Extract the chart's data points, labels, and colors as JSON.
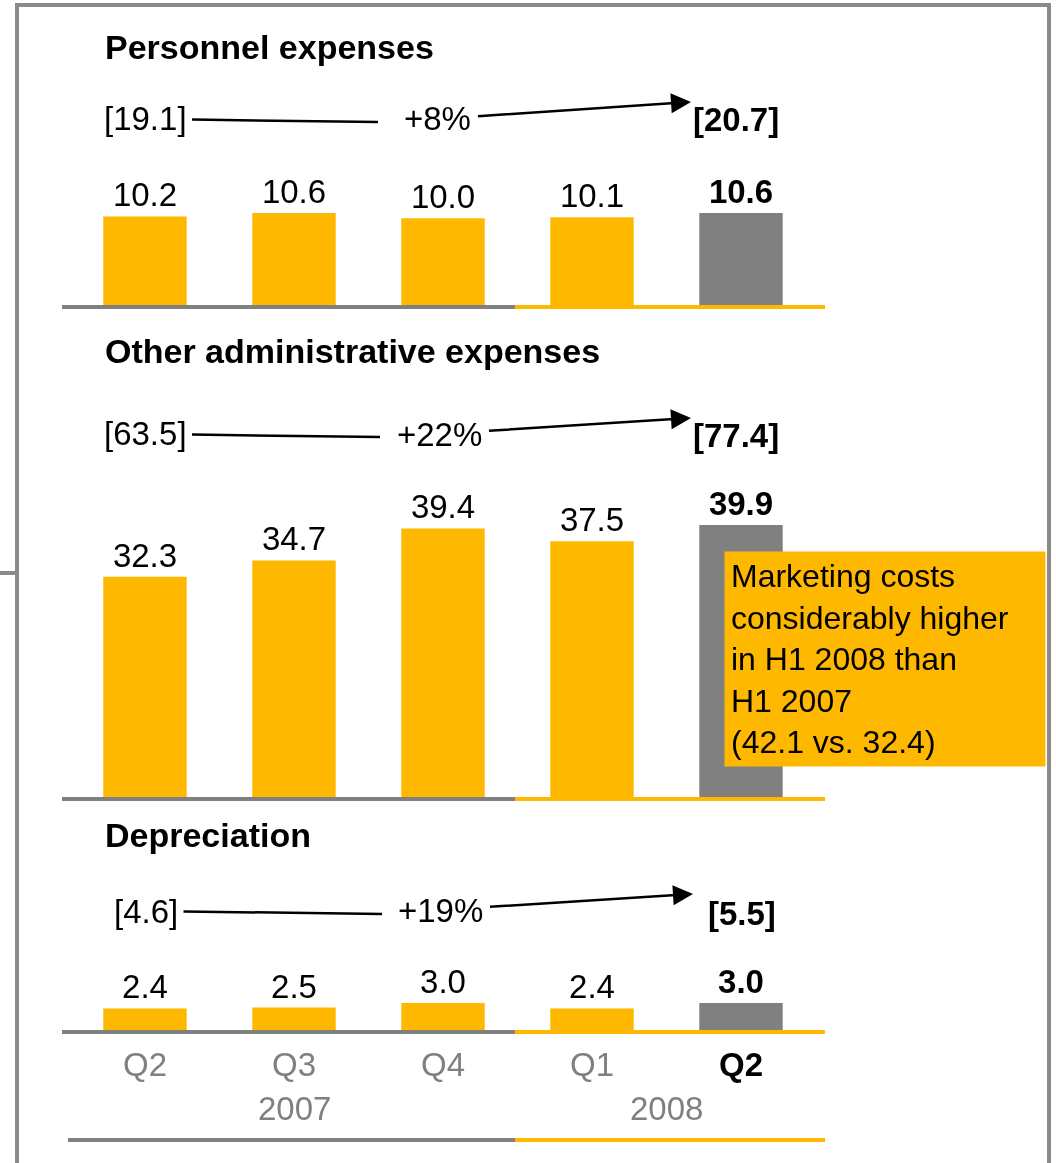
{
  "chart_data": [
    {
      "type": "bar",
      "title": "Personnel expenses",
      "values": [
        10.2,
        10.6,
        10.0,
        10.1,
        10.6
      ],
      "value_labels": [
        "10.2",
        "10.6",
        "10.0",
        "10.1",
        "10.6"
      ],
      "colors": [
        "#ffb800",
        "#ffb800",
        "#ffb800",
        "#ffb800",
        "#808080"
      ],
      "annotations": [
        "[19.1]",
        "+8%",
        "[20.7]"
      ],
      "tick_labels": false
    },
    {
      "type": "bar",
      "title": "Other administrative expenses",
      "values": [
        32.3,
        34.7,
        39.4,
        37.5,
        39.9
      ],
      "value_labels": [
        "32.3",
        "34.7",
        "39.4",
        "37.5",
        "39.9"
      ],
      "colors": [
        "#ffb800",
        "#ffb800",
        "#ffb800",
        "#ffb800",
        "#808080"
      ],
      "annotations": [
        "[63.5]",
        "+22%",
        "[77.4]",
        "Marketing costs\nconsiderably higher\nin H1 2008 than\nH1 2007\n(42.1 vs. 32.4)"
      ],
      "tick_labels": false
    },
    {
      "type": "bar",
      "title": "Depreciation",
      "categories": [
        "Q2",
        "Q3",
        "Q4",
        "Q1",
        "Q2"
      ],
      "values": [
        2.4,
        2.5,
        3.0,
        2.4,
        3.0
      ],
      "value_labels": [
        "2.4",
        "2.5",
        "3.0",
        "2.4",
        "3.0"
      ],
      "colors": [
        "#ffb800",
        "#ffb800",
        "#ffb800",
        "#ffb800",
        "#808080"
      ],
      "annotations": [
        "[4.6]",
        "+19%",
        "[5.5]",
        "2007",
        "2008"
      ],
      "tick_labels": "x"
    }
  ]
}
